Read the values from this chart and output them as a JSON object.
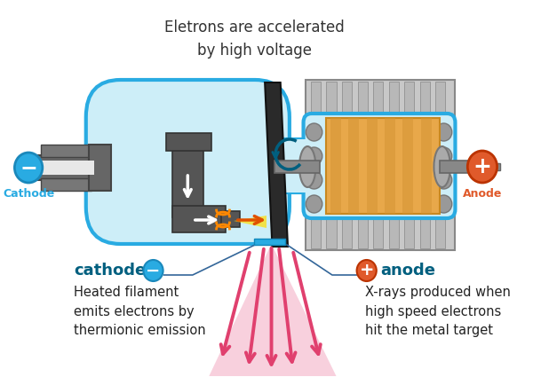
{
  "title": "Eletrons are accelerated\nby high voltage",
  "title_fontsize": 12,
  "title_color": "#333333",
  "bg_color": "#ffffff",
  "tube_fill": "#cdeef8",
  "tube_border": "#29abe2",
  "cathode_label": "Cathode",
  "cathode_color": "#29abe2",
  "anode_label": "Anode",
  "anode_color": "#e05a2b",
  "cathode_text": "cathode",
  "cathode_desc": "Heated filament\nemits electrons by\nthermionic emission",
  "anode_text": "anode",
  "anode_desc": "X-rays produced when\nhigh speed electrons\nhit the metal target",
  "desc_fontsize": 10.5,
  "label_fontsize": 13,
  "gray_dark": "#555555",
  "gray_med": "#777777",
  "gray_light": "#aaaaaa",
  "gray_rib": "#999999",
  "anode_drum_color": "#e8a84a",
  "anode_drum_stripe": "#d49535",
  "xray_pink": "#e0406e",
  "xray_light_pink": "#f5b8cc",
  "rotation_arrow_color": "#005f7f",
  "leader_line_color": "#336699",
  "tube_neck_fill": "#cdeef8",
  "housing_gray": "#b8b8b8",
  "housing_border": "#888888",
  "rib_color": "#c8c8c8"
}
